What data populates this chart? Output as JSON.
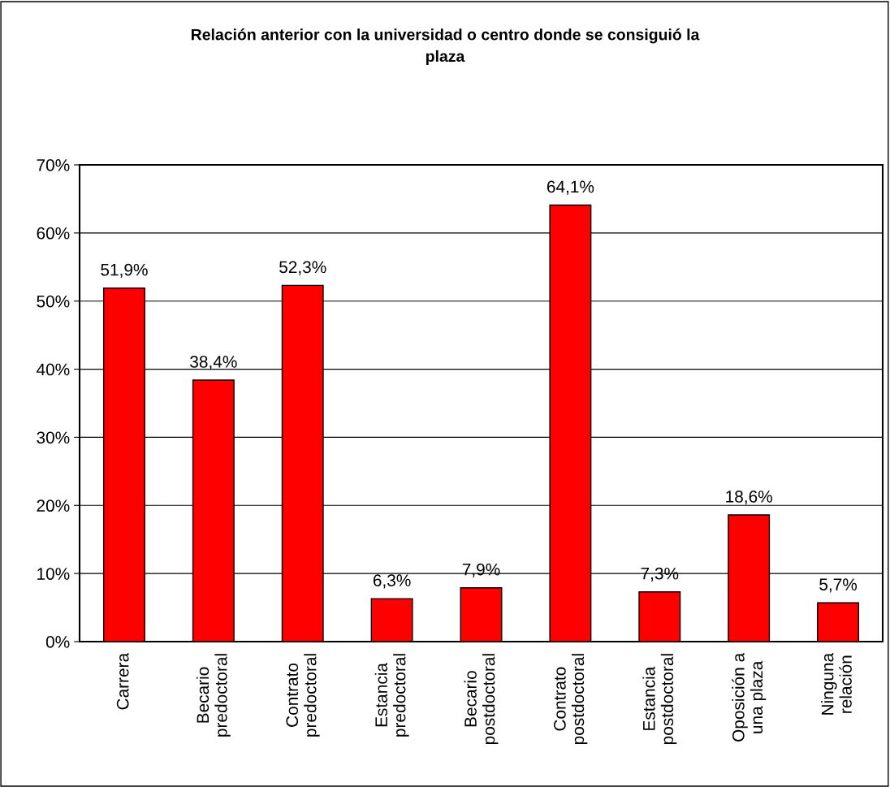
{
  "chart_data": {
    "type": "bar",
    "title": "Relación anterior con la universidad o centro donde se consiguió la\nplaza",
    "categories": [
      "Carrera",
      "Becario\npredoctoral",
      "Contrato\npredoctoral",
      "Estancia\npredoctoral",
      "Becario\npostdoctoral",
      "Contrato\npostdoctoral",
      "Estancia\npostdoctoral",
      "Oposición a\nuna plaza",
      "Ninguna\nrelación"
    ],
    "values": [
      51.9,
      38.4,
      52.3,
      6.3,
      7.9,
      64.1,
      7.3,
      18.6,
      5.7
    ],
    "value_labels": [
      "51,9%",
      "38,4%",
      "52,3%",
      "6,3%",
      "7,9%",
      "64,1%",
      "7,3%",
      "18,6%",
      "5,7%"
    ],
    "color": "#ff0000",
    "ylim": [
      0,
      70
    ],
    "yticks": [
      {
        "value": 0,
        "label": "0%"
      },
      {
        "value": 10,
        "label": "10%"
      },
      {
        "value": 20,
        "label": "20%"
      },
      {
        "value": 30,
        "label": "30%"
      },
      {
        "value": 40,
        "label": "40%"
      },
      {
        "value": 50,
        "label": "50%"
      },
      {
        "value": 60,
        "label": "60%"
      },
      {
        "value": 70,
        "label": "70%"
      }
    ],
    "grid": "y"
  }
}
